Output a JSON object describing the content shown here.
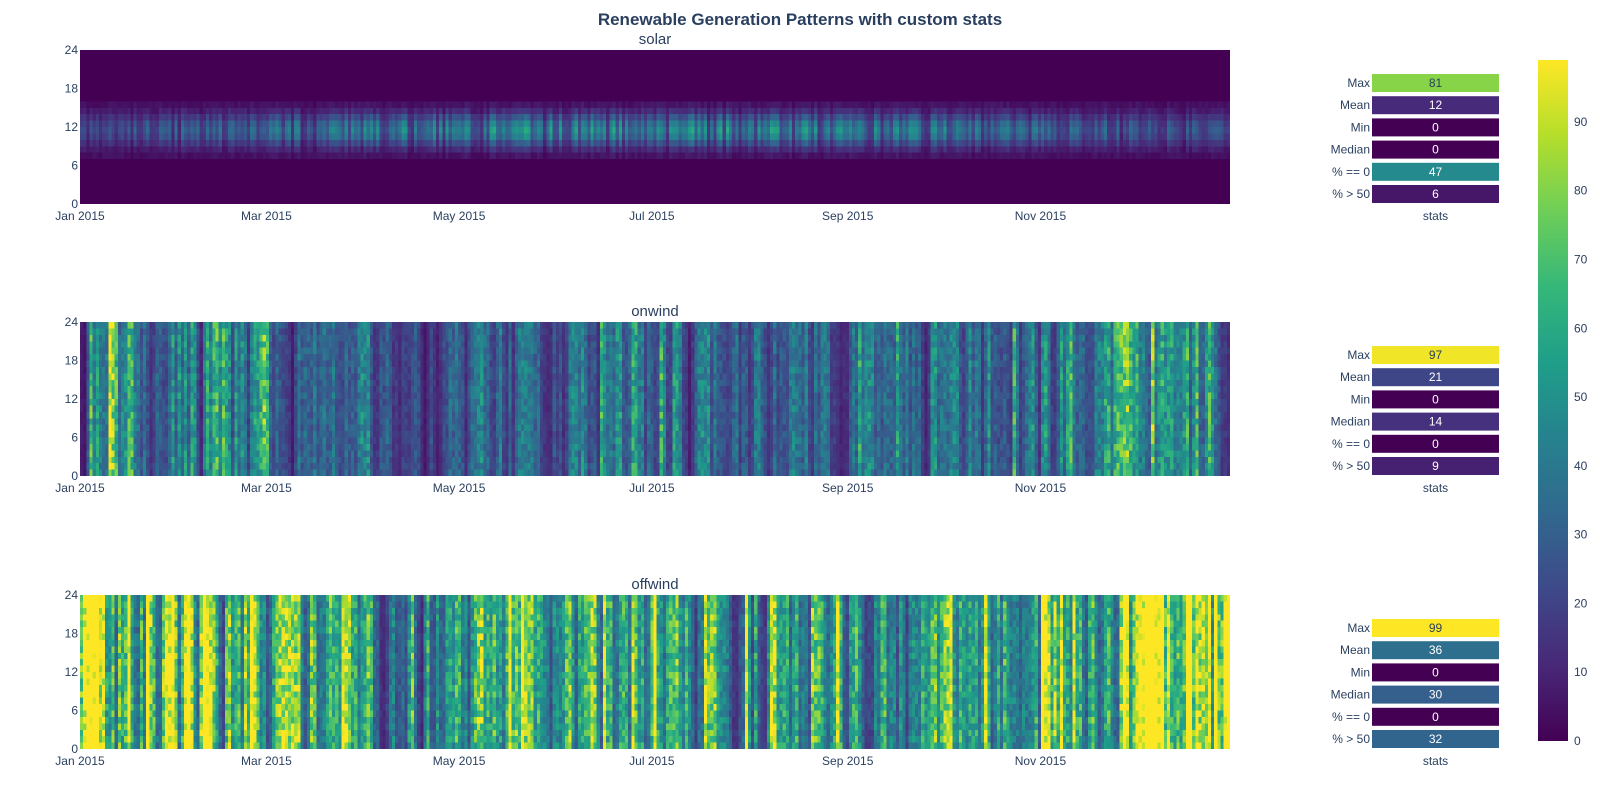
{
  "chart_data": {
    "type": "heatmap",
    "title": "Renewable Generation Patterns with custom stats",
    "x_tick_labels": [
      "Jan 2015",
      "Mar 2015",
      "May 2015",
      "Jul 2015",
      "Sep 2015",
      "Nov 2015"
    ],
    "x_ticks": [
      "2015-01-01",
      "2015-03-01",
      "2015-05-01",
      "2015-07-01",
      "2015-09-01",
      "2015-11-01"
    ],
    "x_range": [
      "2015-01-01",
      "2015-12-31"
    ],
    "y_ticks": [
      0,
      6,
      12,
      18,
      24
    ],
    "y_range": [
      0,
      24
    ],
    "colorscale": "Viridis",
    "colorbar": {
      "range": [
        0,
        99
      ],
      "ticks": [
        0,
        10,
        20,
        30,
        40,
        50,
        60,
        70,
        80,
        90
      ]
    },
    "stats_xlabel": "stats",
    "panels": [
      {
        "name": "solar",
        "stats": [
          {
            "label": "Max",
            "value": 81
          },
          {
            "label": "Mean",
            "value": 12
          },
          {
            "label": "Min",
            "value": 0
          },
          {
            "label": "Median",
            "value": 0
          },
          {
            "label": "% == 0",
            "value": 47
          },
          {
            "label": "% > 50",
            "value": 6
          }
        ]
      },
      {
        "name": "onwind",
        "stats": [
          {
            "label": "Max",
            "value": 97
          },
          {
            "label": "Mean",
            "value": 21
          },
          {
            "label": "Min",
            "value": 0
          },
          {
            "label": "Median",
            "value": 14
          },
          {
            "label": "% == 0",
            "value": 0
          },
          {
            "label": "% > 50",
            "value": 9
          }
        ]
      },
      {
        "name": "offwind",
        "stats": [
          {
            "label": "Max",
            "value": 99
          },
          {
            "label": "Mean",
            "value": 36
          },
          {
            "label": "Min",
            "value": 0
          },
          {
            "label": "Median",
            "value": 30
          },
          {
            "label": "% == 0",
            "value": 0
          },
          {
            "label": "% > 50",
            "value": 32
          }
        ]
      }
    ]
  }
}
